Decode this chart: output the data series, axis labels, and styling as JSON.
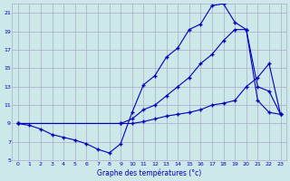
{
  "xlabel": "Graphe des températures (°c)",
  "bg_color": "#cce8e8",
  "grid_color": "#aaaacc",
  "line_color": "#0000bb",
  "xlim": [
    -0.5,
    23.5
  ],
  "ylim": [
    5,
    22
  ],
  "yticks": [
    5,
    7,
    9,
    11,
    13,
    15,
    17,
    19,
    21
  ],
  "xticks": [
    0,
    1,
    2,
    3,
    4,
    5,
    6,
    7,
    8,
    9,
    10,
    11,
    12,
    13,
    14,
    15,
    16,
    17,
    18,
    19,
    20,
    21,
    22,
    23
  ],
  "line1_x": [
    0,
    1,
    2,
    3,
    4,
    5,
    6,
    7,
    8,
    9,
    10,
    11,
    12,
    13,
    14,
    15,
    16,
    17,
    18,
    19,
    20,
    21,
    22,
    23
  ],
  "line1_y": [
    9,
    8.8,
    8.4,
    7.8,
    7.5,
    7.2,
    6.8,
    6.2,
    5.8,
    6.8,
    10.2,
    13.2,
    14.2,
    16.2,
    17.2,
    19.2,
    19.8,
    21.8,
    22,
    20,
    19.2,
    11.5,
    10.2,
    10
  ],
  "line2_x": [
    0,
    9,
    10,
    11,
    12,
    13,
    14,
    15,
    16,
    17,
    18,
    19,
    20,
    21,
    22,
    23
  ],
  "line2_y": [
    9,
    9,
    9.5,
    10.5,
    11,
    12,
    13,
    14,
    15.5,
    16.5,
    18,
    19.2,
    19.2,
    13,
    12.5,
    10
  ],
  "line3_x": [
    0,
    9,
    10,
    11,
    12,
    13,
    14,
    15,
    16,
    17,
    18,
    19,
    20,
    21,
    22,
    23
  ],
  "line3_y": [
    9,
    9,
    9,
    9.2,
    9.5,
    9.8,
    10,
    10.2,
    10.5,
    11,
    11.2,
    11.5,
    13,
    14,
    15.5,
    10
  ]
}
